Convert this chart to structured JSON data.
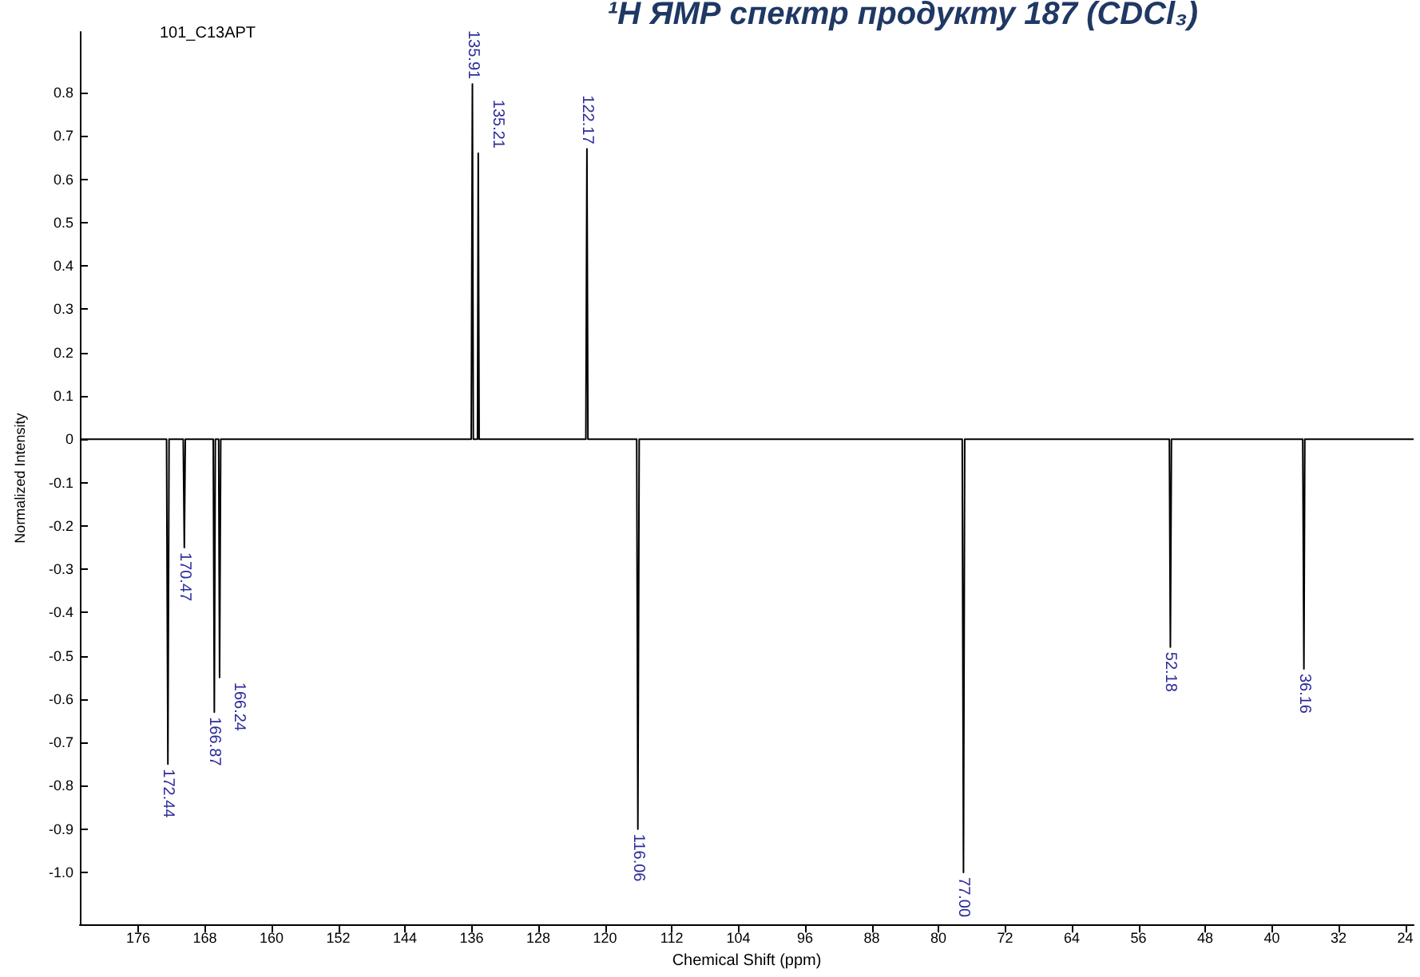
{
  "chart_data": {
    "type": "line",
    "title": "¹H ЯМР спектр продукту 187 (CDCl₃)",
    "xlabel": "Chemical Shift (ppm)",
    "ylabel": "Normalized Intensity",
    "x": [
      183,
      172.6,
      172.44,
      172.3,
      170.6,
      170.47,
      170.35,
      167.0,
      166.87,
      166.75,
      166.35,
      166.24,
      166.1,
      136.05,
      135.91,
      135.8,
      135.3,
      135.21,
      135.1,
      122.3,
      122.17,
      122.05,
      116.2,
      116.06,
      115.9,
      77.15,
      77.0,
      76.85,
      52.3,
      52.18,
      52.05,
      36.3,
      36.16,
      36.05,
      23
    ],
    "series": [
      {
        "color": "#000000",
        "values": [
          0,
          0,
          -0.75,
          0,
          0,
          -0.25,
          0,
          0,
          -0.63,
          0,
          0,
          -0.55,
          0,
          0,
          0.82,
          0,
          0,
          0.66,
          0,
          0,
          0.67,
          0,
          0,
          -0.9,
          0,
          0,
          -1.0,
          0,
          0,
          -0.48,
          0,
          0,
          -0.53,
          0,
          0
        ]
      }
    ],
    "xlim": [
      183,
      23
    ],
    "xticks": [
      176,
      168,
      160,
      152,
      144,
      136,
      128,
      120,
      112,
      104,
      96,
      88,
      80,
      72,
      64,
      56,
      48,
      40,
      32,
      24
    ],
    "ylim": [
      -1.12,
      0.94
    ],
    "yticks": [
      {
        "value": -1,
        "label": "-1.0"
      },
      -0.9,
      -0.8,
      -0.7,
      -0.6,
      -0.5,
      -0.4,
      -0.3,
      -0.2,
      -0.1,
      0,
      0.1,
      0.2,
      0.3,
      0.4,
      0.5,
      0.6,
      0.7,
      0.8
    ],
    "annotations": [
      "101_C13APT",
      {
        "text": "172.44",
        "x": 172.44,
        "y": -0.75
      },
      {
        "text": "170.47",
        "x": 170.47,
        "y": -0.25
      },
      {
        "text": "166.87",
        "x": 166.87,
        "y": -0.63
      },
      {
        "text": "166.24",
        "x": 166.24,
        "y": -0.55
      },
      {
        "text": "135.91",
        "x": 135.91,
        "y": 0.82
      },
      {
        "text": "135.21",
        "x": 135.21,
        "y": 0.66
      },
      {
        "text": "122.17",
        "x": 122.17,
        "y": 0.67
      },
      {
        "text": "116.06",
        "x": 116.06,
        "y": -0.9
      },
      {
        "text": "77.00",
        "x": 77.0,
        "y": -1.0
      },
      {
        "text": "52.18",
        "x": 52.18,
        "y": -0.48
      },
      {
        "text": "36.16",
        "x": 36.16,
        "y": -0.53
      }
    ],
    "grid": false,
    "marker": "none",
    "line_style": "solid"
  }
}
